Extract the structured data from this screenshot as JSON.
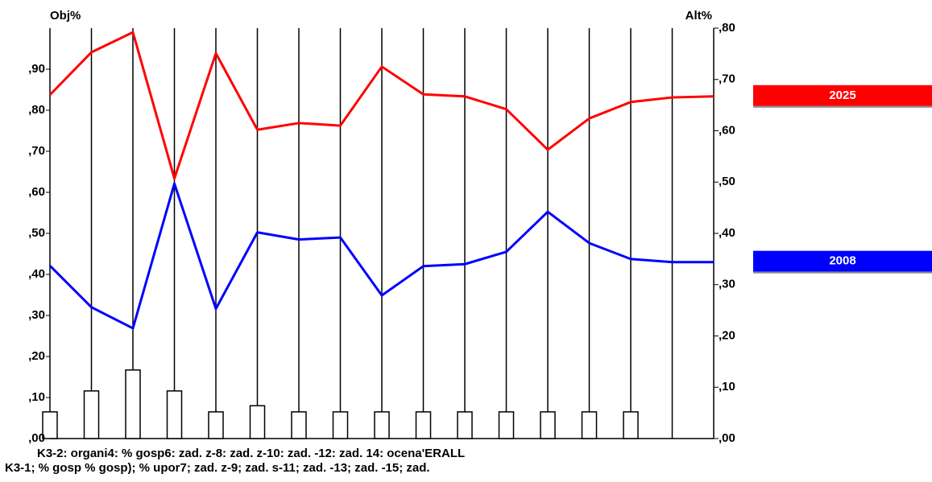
{
  "chart_data": {
    "type": "line",
    "ylabel": "Obj%",
    "y2label": "Alt%",
    "categories": [
      null,
      null,
      null,
      null,
      null,
      null,
      null,
      null,
      null,
      null,
      null,
      null,
      null,
      null,
      null,
      null,
      null
    ],
    "x_label_rows": [
      "K3-2: organi4: % gosp6: zad. z-8: zad. z-10: zad. -12: zad. 14: ocena'ERALL",
      "K3-1; % gosp % gosp); % upor7; zad. z-9; zad. s-11; zad. -13; zad. -15; zad."
    ],
    "ylim": [
      0,
      1.0
    ],
    "yticks": [
      {
        "value": 0,
        "label": ",00"
      },
      {
        "value": 0.1,
        "label": ",10"
      },
      {
        "value": 0.2,
        "label": ",20"
      },
      {
        "value": 0.3,
        "label": ",30"
      },
      {
        "value": 0.4,
        "label": ",40"
      },
      {
        "value": 0.5,
        "label": ",50"
      },
      {
        "value": 0.6,
        "label": ",60"
      },
      {
        "value": 0.7,
        "label": ",70"
      },
      {
        "value": 0.8,
        "label": ",80"
      },
      {
        "value": 0.9,
        "label": ",90"
      }
    ],
    "y2lim": [
      0,
      0.8
    ],
    "y2ticks": [
      {
        "value": 0,
        "label": ",00"
      },
      {
        "value": 0.1,
        "label": ",10"
      },
      {
        "value": 0.2,
        "label": ",20"
      },
      {
        "value": 0.3,
        "label": ",30"
      },
      {
        "value": 0.4,
        "label": ",40"
      },
      {
        "value": 0.5,
        "label": ",50"
      },
      {
        "value": 0.6,
        "label": ",60"
      },
      {
        "value": 0.7,
        "label": ",70"
      },
      {
        "value": 0.8,
        "label": ",80"
      }
    ],
    "grid": true,
    "bars": {
      "color": "#ffffff",
      "values": [
        0.065,
        0.116,
        0.167,
        0.116,
        0.065,
        0.08,
        0.065,
        0.065,
        0.065,
        0.065,
        0.065,
        0.065,
        0.065,
        0.065,
        0.065,
        null,
        null
      ]
    },
    "series": [
      {
        "name": "2025",
        "color": "#ff0000",
        "axis": "y2",
        "values": [
          0.67,
          0.753,
          0.792,
          0.507,
          0.751,
          0.602,
          0.615,
          0.61,
          0.725,
          0.671,
          0.667,
          0.642,
          0.563,
          0.624,
          0.656,
          0.665,
          0.667
        ]
      },
      {
        "name": "2008",
        "color": "#0000ff",
        "axis": "y2",
        "values": [
          0.337,
          0.256,
          0.215,
          0.497,
          0.253,
          0.402,
          0.388,
          0.392,
          0.279,
          0.336,
          0.34,
          0.364,
          0.442,
          0.381,
          0.35,
          0.344,
          0.344
        ]
      }
    ]
  }
}
